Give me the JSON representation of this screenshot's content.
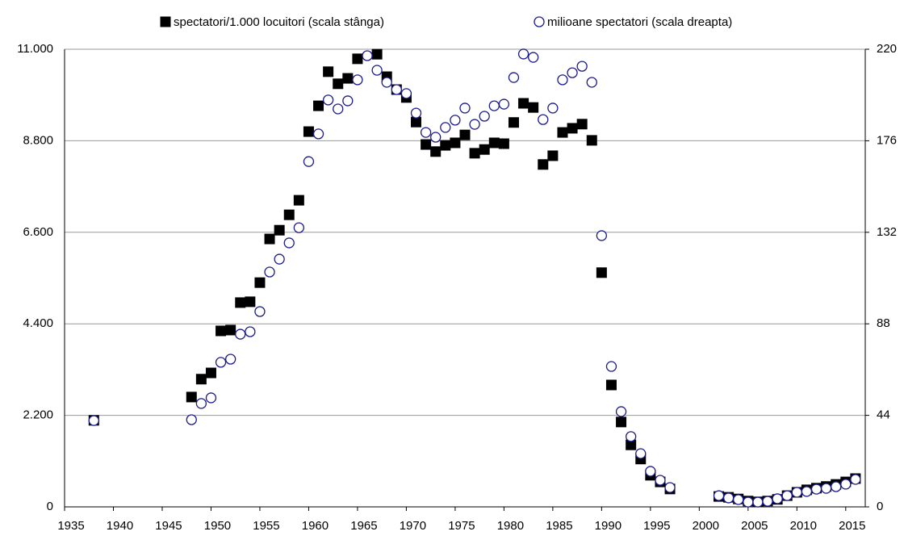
{
  "chart_data": {
    "type": "scatter",
    "x": [
      1938,
      1948,
      1949,
      1950,
      1951,
      1952,
      1953,
      1954,
      1955,
      1956,
      1957,
      1958,
      1959,
      1960,
      1961,
      1962,
      1963,
      1964,
      1965,
      1966,
      1967,
      1968,
      1969,
      1970,
      1971,
      1972,
      1973,
      1974,
      1975,
      1976,
      1977,
      1978,
      1979,
      1980,
      1981,
      1982,
      1983,
      1984,
      1985,
      1986,
      1987,
      1988,
      1989,
      1990,
      1991,
      1992,
      1993,
      1994,
      1995,
      1996,
      1997,
      2002,
      2003,
      2004,
      2005,
      2006,
      2007,
      2008,
      2009,
      2010,
      2011,
      2012,
      2013,
      2014,
      2015,
      2016
    ],
    "series": [
      {
        "name": "spectatori/1.000 locuitori (scala stânga)",
        "color": "#000000",
        "marker": "square",
        "values": [
          2080,
          2640,
          3070,
          3220,
          4230,
          4250,
          4910,
          4930,
          5390,
          6440,
          6650,
          7020,
          7370,
          9020,
          9640,
          10460,
          10170,
          10300,
          10770,
          null,
          10880,
          10340,
          10030,
          9840,
          9250,
          8710,
          8540,
          8690,
          8750,
          8940,
          8500,
          8590,
          8750,
          8730,
          9240,
          9700,
          9600,
          8230,
          8440,
          9000,
          9100,
          9200,
          8810,
          5630,
          2930,
          2040,
          1490,
          1150,
          760,
          600,
          430,
          250,
          230,
          190,
          140,
          120,
          140,
          180,
          270,
          350,
          410,
          450,
          490,
          540,
          600,
          680
        ]
      },
      {
        "name": "milioane spectatori (scala dreapta)",
        "color": "#1a1a8c",
        "marker": "circle",
        "axis": "y2",
        "values": [
          41.5,
          41.9,
          49.7,
          52.4,
          69.5,
          71,
          83,
          84.2,
          93.9,
          112.9,
          119.1,
          126.9,
          134.2,
          166,
          179.3,
          195.6,
          191.3,
          195.2,
          205.3,
          216.9,
          209.9,
          204.1,
          200.6,
          198.7,
          189.3,
          180,
          177.7,
          182.4,
          185.9,
          191.7,
          183.9,
          187.8,
          192.8,
          193.6,
          206.4,
          217.7,
          216.1,
          186.2,
          191.7,
          205.3,
          208.7,
          211.8,
          204.1,
          130.4,
          67.5,
          45.8,
          33.8,
          25.6,
          17.1,
          12.8,
          9.3,
          5.4,
          4.3,
          3.5,
          2.3,
          2.3,
          2.7,
          3.9,
          5.4,
          7,
          7.4,
          8.5,
          8.9,
          9.7,
          10.9,
          13.2
        ]
      }
    ],
    "xlim": [
      1935,
      2017
    ],
    "xticks": [
      1935,
      1940,
      1945,
      1950,
      1955,
      1960,
      1965,
      1970,
      1975,
      1980,
      1985,
      1990,
      1995,
      2000,
      2005,
      2010,
      2015
    ],
    "ylim": [
      0,
      11000
    ],
    "yticks": [
      0,
      {
        "value": 2200,
        "label": "2.200"
      },
      {
        "value": 4400,
        "label": "4.400"
      },
      {
        "value": 6600,
        "label": "6.600"
      },
      {
        "value": 8800,
        "label": "8.800"
      },
      {
        "value": 11000,
        "label": "11.000"
      }
    ],
    "y2lim": [
      0,
      220
    ],
    "y2ticks": [
      0,
      44,
      88,
      132,
      176,
      220
    ],
    "grid": true,
    "legend": "top"
  }
}
